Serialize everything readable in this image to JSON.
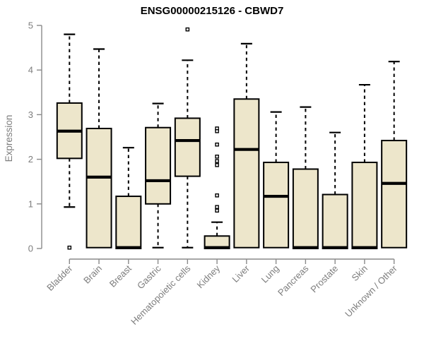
{
  "chart_data": {
    "type": "boxplot",
    "title": "ENSG00000215126 - CBWD7",
    "ylabel": "Expression",
    "xlabel": "",
    "ylim": [
      0,
      5
    ],
    "yticks": [
      0,
      1,
      2,
      3,
      4,
      5
    ],
    "grid": false,
    "legend": "none",
    "categories": [
      "Bladder",
      "Brain",
      "Breast",
      "Gastric",
      "Hematopoietic cells",
      "Kidney",
      "Liver",
      "Lung",
      "Pancreas",
      "Prostate",
      "Skin",
      "Unknown / Other"
    ],
    "boxes": [
      {
        "label": "Bladder",
        "q1": 2.02,
        "median": 2.63,
        "q3": 3.26,
        "whisker_low": 0.93,
        "whisker_high": 4.8,
        "outliers": [
          0.02
        ]
      },
      {
        "label": "Brain",
        "q1": 0.02,
        "median": 1.6,
        "q3": 2.69,
        "whisker_low": 0.02,
        "whisker_high": 4.47,
        "outliers": []
      },
      {
        "label": "Breast",
        "q1": 0.0,
        "median": 0.02,
        "q3": 1.17,
        "whisker_low": 0.0,
        "whisker_high": 2.26,
        "outliers": []
      },
      {
        "label": "Gastric",
        "q1": 1.0,
        "median": 1.52,
        "q3": 2.71,
        "whisker_low": 0.02,
        "whisker_high": 3.25,
        "outliers": []
      },
      {
        "label": "Hematopoietic cells",
        "q1": 1.62,
        "median": 2.42,
        "q3": 2.92,
        "whisker_low": 0.02,
        "whisker_high": 4.22,
        "outliers": [
          4.91
        ]
      },
      {
        "label": "Kidney",
        "q1": 0.0,
        "median": 0.02,
        "q3": 0.28,
        "whisker_low": 0.0,
        "whisker_high": 0.59,
        "outliers": [
          2.69,
          2.63,
          2.33,
          2.06,
          1.96,
          1.87,
          1.19,
          0.93,
          0.85
        ]
      },
      {
        "label": "Liver",
        "q1": 0.02,
        "median": 2.22,
        "q3": 3.35,
        "whisker_low": 0.02,
        "whisker_high": 4.59,
        "outliers": []
      },
      {
        "label": "Lung",
        "q1": 0.02,
        "median": 1.17,
        "q3": 1.93,
        "whisker_low": 0.02,
        "whisker_high": 3.06,
        "outliers": []
      },
      {
        "label": "Pancreas",
        "q1": 0.0,
        "median": 0.02,
        "q3": 1.78,
        "whisker_low": 0.0,
        "whisker_high": 3.17,
        "outliers": []
      },
      {
        "label": "Prostate",
        "q1": 0.0,
        "median": 0.02,
        "q3": 1.21,
        "whisker_low": 0.0,
        "whisker_high": 2.6,
        "outliers": []
      },
      {
        "label": "Skin",
        "q1": 0.0,
        "median": 0.02,
        "q3": 1.93,
        "whisker_low": 0.0,
        "whisker_high": 3.67,
        "outliers": []
      },
      {
        "label": "Unknown / Other",
        "q1": 0.02,
        "median": 1.46,
        "q3": 2.42,
        "whisker_low": 0.02,
        "whisker_high": 4.19,
        "outliers": []
      }
    ],
    "colors": {
      "box_fill": "#EDE6CB",
      "box_border": "#000000",
      "median": "#000000",
      "whisker": "#000000",
      "outlier_fill": "#ffffff",
      "axis": "#8a8a8a",
      "tick_label": "#7d7d7d",
      "title": "#000000",
      "background": "#ffffff"
    }
  }
}
